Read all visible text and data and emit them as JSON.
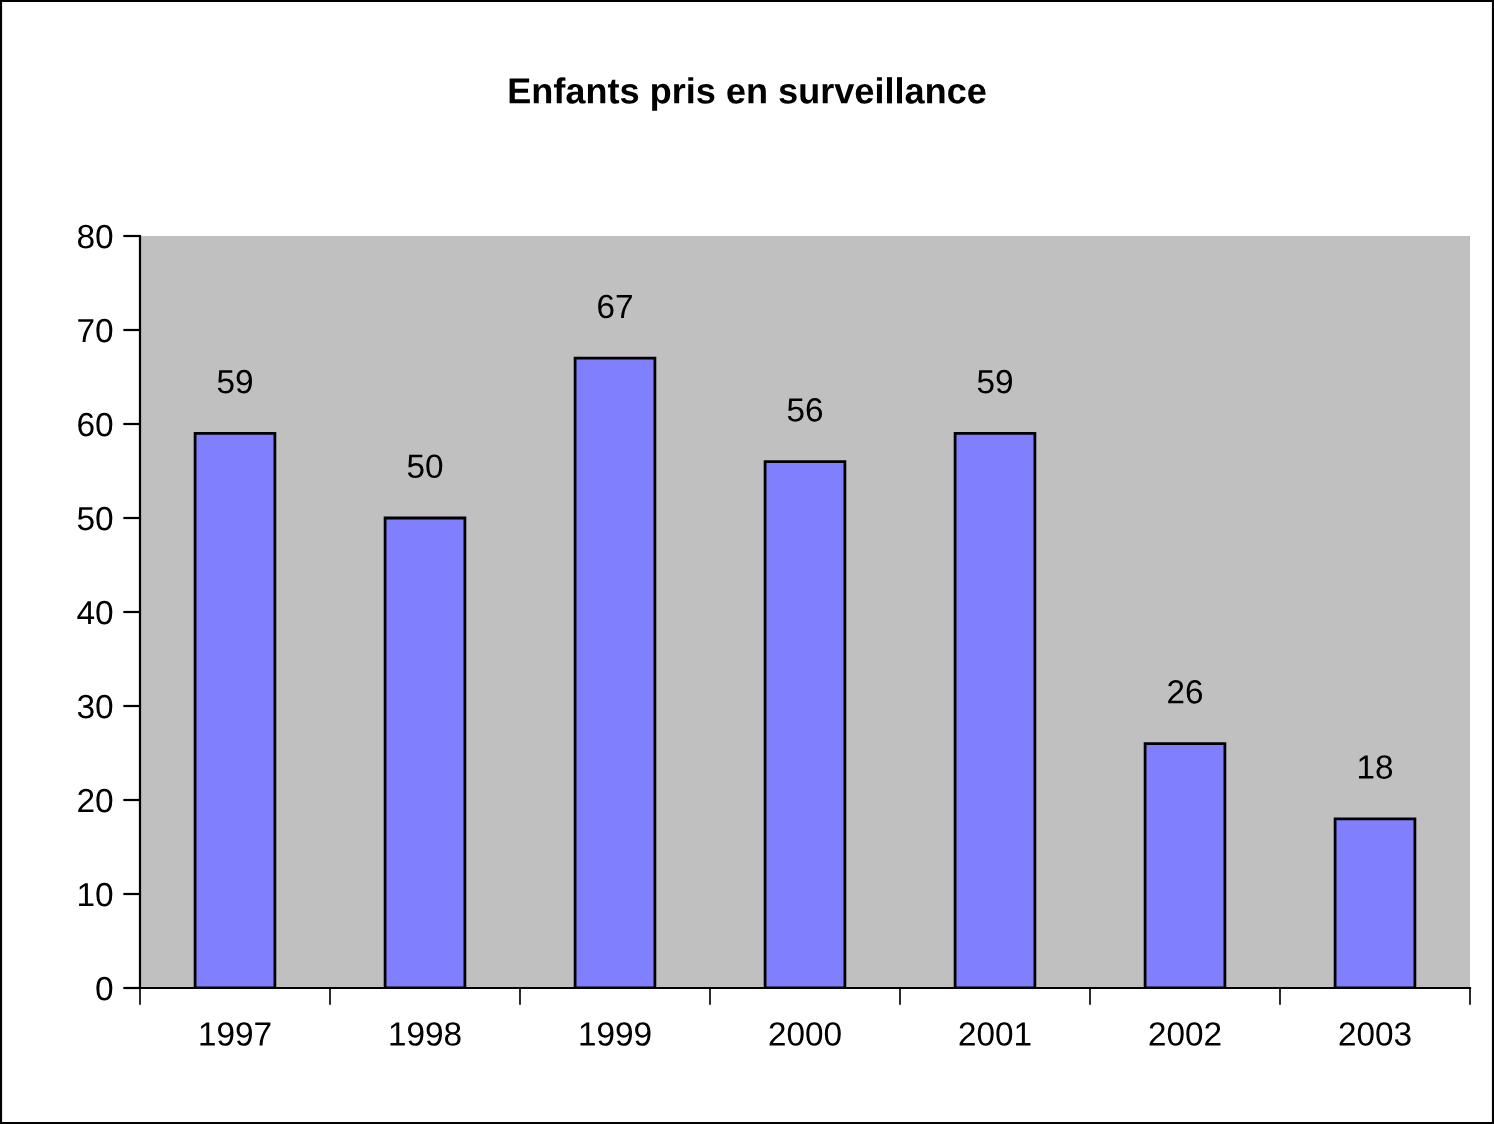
{
  "chart_data": {
    "type": "bar",
    "title": "Enfants pris en surveillance",
    "categories": [
      "1997",
      "1998",
      "1999",
      "2000",
      "2001",
      "2002",
      "2003"
    ],
    "values": [
      59,
      50,
      67,
      56,
      59,
      26,
      18
    ],
    "color": "#8080ff",
    "ylim": [
      0,
      80
    ],
    "yticks": [
      0,
      10,
      20,
      30,
      40,
      50,
      60,
      70,
      80
    ],
    "data_labels": true
  }
}
